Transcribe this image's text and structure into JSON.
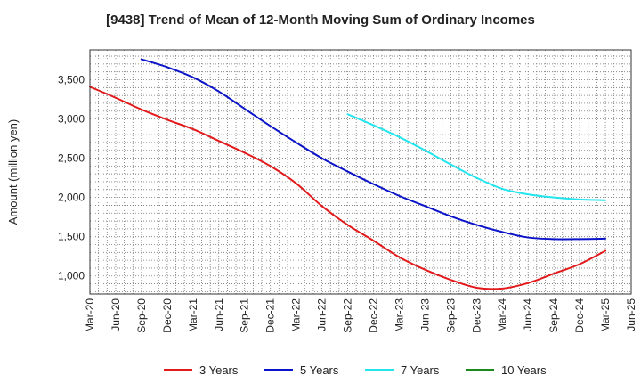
{
  "chart_data": {
    "type": "line",
    "title": "[9438]  Trend of Mean of 12-Month Moving Sum of Ordinary Incomes",
    "xlabel": "",
    "ylabel": "Amount (million yen)",
    "ylim": [
      770,
      3880
    ],
    "yticks": [
      1000,
      1500,
      2000,
      2500,
      3000,
      3500
    ],
    "ytick_labels": [
      "1,000",
      "1,500",
      "2,000",
      "2,500",
      "3,000",
      "3,500"
    ],
    "categories": [
      "Mar-20",
      "Jun-20",
      "Sep-20",
      "Dec-20",
      "Mar-21",
      "Jun-21",
      "Sep-21",
      "Dec-21",
      "Mar-22",
      "Jun-22",
      "Sep-22",
      "Dec-22",
      "Mar-23",
      "Jun-23",
      "Sep-23",
      "Dec-23",
      "Mar-24",
      "Jun-24",
      "Sep-24",
      "Dec-24",
      "Mar-25",
      "Jun-25"
    ],
    "grid": true,
    "legend_position": "bottom",
    "series": [
      {
        "name": "3 Years",
        "color": "#e31a1c",
        "values": [
          3410,
          3270,
          3120,
          2990,
          2870,
          2720,
          2570,
          2400,
          2180,
          1890,
          1650,
          1450,
          1240,
          1080,
          950,
          850,
          840,
          910,
          1030,
          1150,
          1320,
          null
        ]
      },
      {
        "name": "5 Years",
        "color": "#0b14c8",
        "values": [
          null,
          null,
          3760,
          3660,
          3530,
          3350,
          3130,
          2910,
          2700,
          2500,
          2330,
          2170,
          2020,
          1890,
          1760,
          1650,
          1560,
          1490,
          1470,
          1470,
          1475,
          null
        ]
      },
      {
        "name": "7 Years",
        "color": "#22e5ee",
        "values": [
          null,
          null,
          null,
          null,
          null,
          null,
          null,
          null,
          null,
          null,
          3060,
          2920,
          2770,
          2600,
          2420,
          2250,
          2110,
          2040,
          2000,
          1975,
          1965,
          null
        ]
      },
      {
        "name": "10 Years",
        "color": "#1a8a1a",
        "values": [
          null,
          null,
          null,
          null,
          null,
          null,
          null,
          null,
          null,
          null,
          null,
          null,
          null,
          null,
          null,
          null,
          null,
          null,
          null,
          null,
          null,
          null
        ]
      }
    ]
  }
}
